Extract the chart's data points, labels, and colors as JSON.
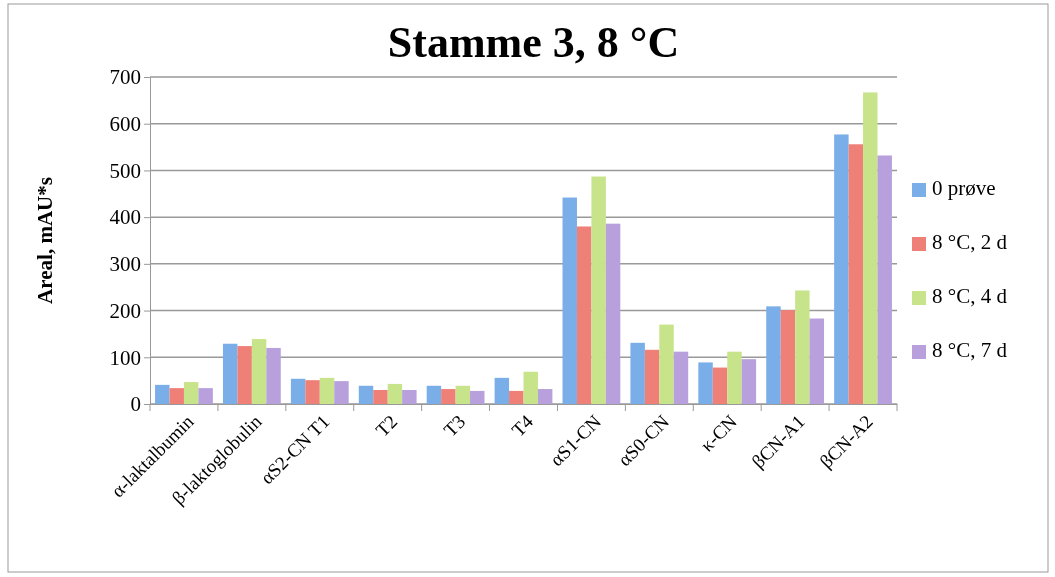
{
  "chart_data": {
    "type": "bar",
    "title": "Stamme 3, 8 °C",
    "ylabel": "Areal, mAU*s",
    "categories": [
      "α-laktalbumin",
      "β-laktoglobulin",
      "αS2-CN T1",
      "T2",
      "T3",
      "T4",
      "αS1-CN",
      "αS0-CN",
      "κ-CN",
      "βCN-A1",
      "βCN-A2"
    ],
    "series": [
      {
        "name": "0 prøve",
        "color": "#7aaee8",
        "values": [
          41,
          129,
          54,
          39,
          39,
          56,
          442,
          131,
          89,
          209,
          577
        ]
      },
      {
        "name": "8 °C, 2 d",
        "color": "#ee8078",
        "values": [
          34,
          124,
          51,
          30,
          32,
          28,
          380,
          116,
          78,
          201,
          556
        ]
      },
      {
        "name": "8 °C, 4 d",
        "color": "#c8e48a",
        "values": [
          47,
          139,
          56,
          43,
          39,
          69,
          487,
          170,
          112,
          243,
          667
        ]
      },
      {
        "name": "8 °C, 7 d",
        "color": "#b8a0dc",
        "values": [
          34,
          120,
          49,
          30,
          28,
          32,
          386,
          112,
          96,
          183,
          532
        ]
      }
    ],
    "ylim": [
      0,
      700
    ],
    "yticks": [
      0,
      100,
      200,
      300,
      400,
      500,
      600,
      700
    ],
    "grid": "y",
    "legend": "right"
  }
}
